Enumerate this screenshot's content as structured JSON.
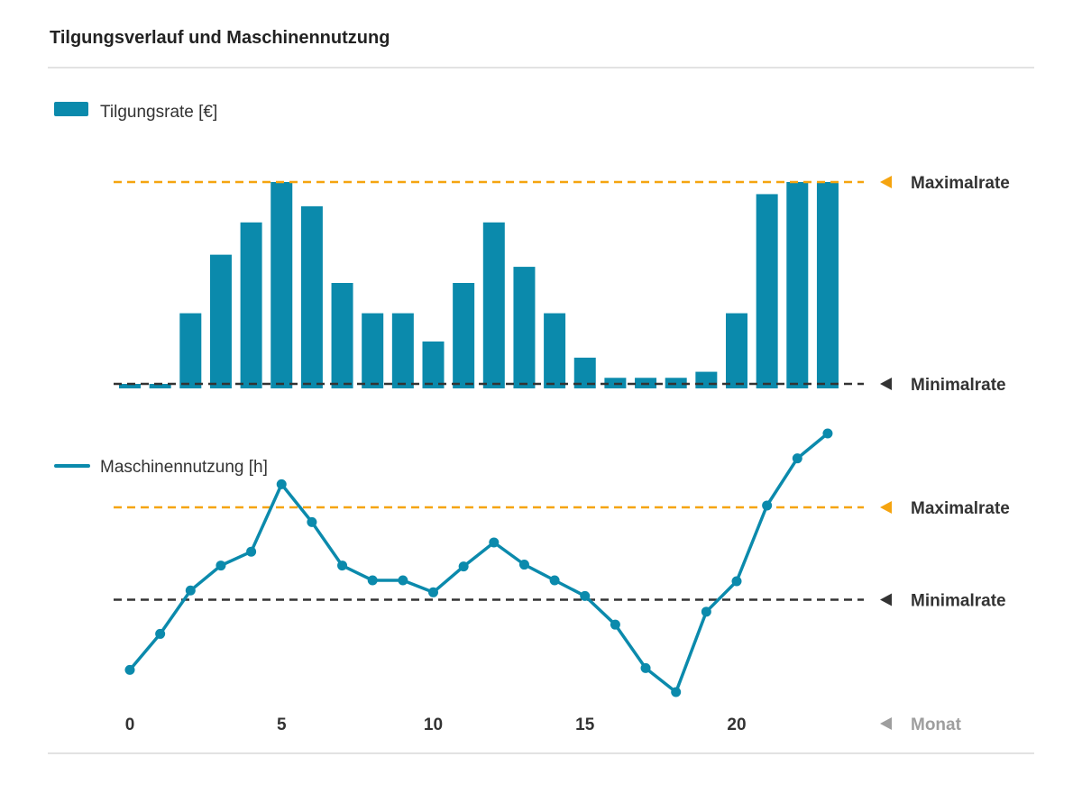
{
  "title": "Tilgungsverlauf und Maschinennutzung",
  "colors": {
    "series": "#0b8aac",
    "max_line": "#f5a40f",
    "min_line": "#333333",
    "axis_name": "#9e9e9e",
    "rule": "#e2e2e2"
  },
  "chart_data": [
    {
      "type": "bar",
      "legend": "Tilgungsrate [€]",
      "x": [
        0,
        1,
        2,
        3,
        4,
        5,
        6,
        7,
        8,
        9,
        10,
        11,
        12,
        13,
        14,
        15,
        16,
        17,
        18,
        19,
        20,
        21,
        22,
        23
      ],
      "values": [
        0,
        0,
        0.35,
        0.64,
        0.8,
        1.0,
        0.88,
        0.5,
        0.35,
        0.35,
        0.21,
        0.5,
        0.8,
        0.58,
        0.35,
        0.13,
        0.03,
        0.03,
        0.03,
        0.06,
        0.35,
        0.94,
        1.0,
        1.0
      ],
      "reference_lines": [
        {
          "label": "Maximalrate",
          "value": 1.0,
          "color": "#f5a40f"
        },
        {
          "label": "Minimalrate",
          "value": 0,
          "color": "#333333"
        }
      ]
    },
    {
      "type": "line",
      "legend": "Maschinennutzung [h]",
      "x": [
        0,
        1,
        2,
        3,
        4,
        5,
        6,
        7,
        8,
        9,
        10,
        11,
        12,
        13,
        14,
        15,
        16,
        17,
        18,
        19,
        20,
        21,
        22,
        23
      ],
      "values": [
        0.24,
        0.63,
        1.1,
        1.37,
        1.52,
        2.25,
        1.84,
        1.37,
        1.21,
        1.21,
        1.08,
        1.36,
        1.62,
        1.38,
        1.21,
        1.04,
        0.73,
        0.26,
        0.0,
        0.87,
        1.2,
        2.02,
        2.53,
        2.8
      ],
      "reference_lines": [
        {
          "label": "Maximalrate",
          "value": 2.0,
          "color": "#f5a40f"
        },
        {
          "label": "Minimalrate",
          "value": 1.0,
          "color": "#333333"
        }
      ]
    }
  ],
  "x_axis": {
    "name": "Monat",
    "ticks": [
      0,
      5,
      10,
      15,
      20
    ],
    "range": [
      0,
      23
    ]
  }
}
